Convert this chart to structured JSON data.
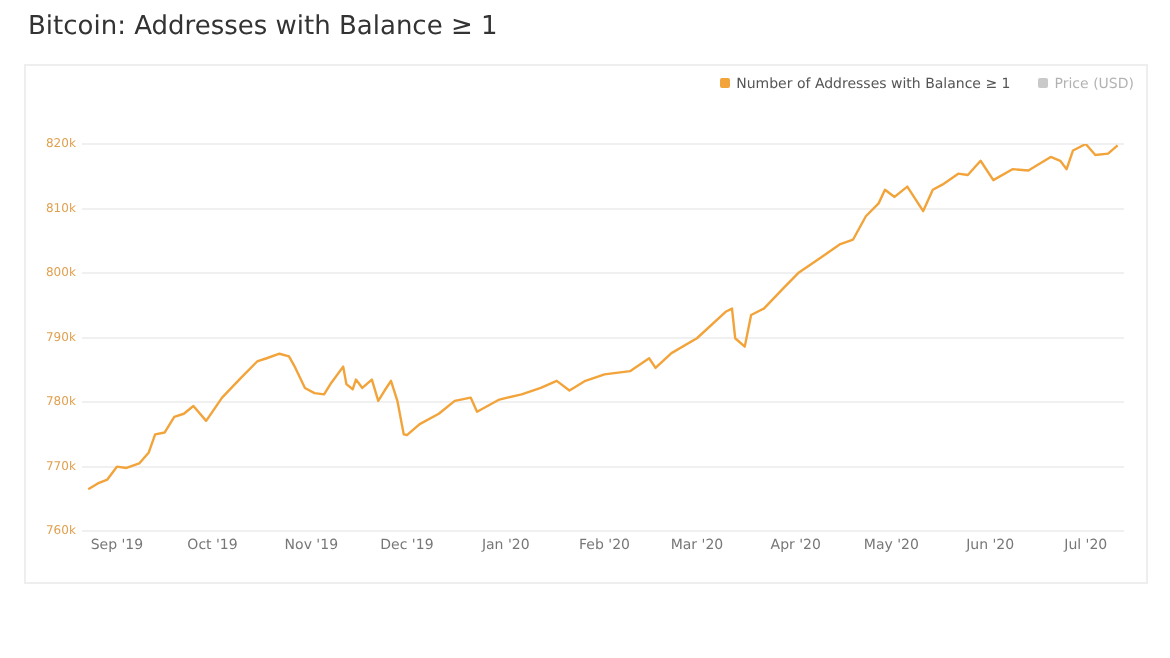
{
  "chart_data": {
    "type": "line",
    "title": "Bitcoin: Addresses with Balance ≥ 1",
    "x": [
      "2019-08-23",
      "2019-08-26",
      "2019-08-29",
      "2019-09-01",
      "2019-09-04",
      "2019-09-08",
      "2019-09-11",
      "2019-09-13",
      "2019-09-16",
      "2019-09-19",
      "2019-09-22",
      "2019-09-25",
      "2019-09-29",
      "2019-10-04",
      "2019-10-10",
      "2019-10-15",
      "2019-10-18",
      "2019-10-22",
      "2019-10-25",
      "2019-10-27",
      "2019-10-30",
      "2019-11-02",
      "2019-11-05",
      "2019-11-07",
      "2019-11-11",
      "2019-11-12",
      "2019-11-14",
      "2019-11-15",
      "2019-11-17",
      "2019-11-20",
      "2019-11-22",
      "2019-11-24",
      "2019-11-26",
      "2019-11-28",
      "2019-11-30",
      "2019-12-01",
      "2019-12-05",
      "2019-12-11",
      "2019-12-16",
      "2019-12-21",
      "2019-12-23",
      "2019-12-30",
      "2020-01-06",
      "2020-01-12",
      "2020-01-17",
      "2020-01-21",
      "2020-01-26",
      "2020-02-01",
      "2020-02-09",
      "2020-02-15",
      "2020-02-17",
      "2020-02-22",
      "2020-03-01",
      "2020-03-10",
      "2020-03-12",
      "2020-03-13",
      "2020-03-16",
      "2020-03-18",
      "2020-03-22",
      "2020-03-28",
      "2020-04-02",
      "2020-04-08",
      "2020-04-15",
      "2020-04-19",
      "2020-04-23",
      "2020-04-27",
      "2020-04-29",
      "2020-05-02",
      "2020-05-06",
      "2020-05-11",
      "2020-05-14",
      "2020-05-17",
      "2020-05-22",
      "2020-05-25",
      "2020-05-29",
      "2020-06-02",
      "2020-06-08",
      "2020-06-13",
      "2020-06-20",
      "2020-06-23",
      "2020-06-25",
      "2020-06-27",
      "2020-06-29",
      "2020-07-01",
      "2020-07-04",
      "2020-07-08",
      "2020-07-11"
    ],
    "series": [
      {
        "name": "Number of Addresses with Balance ≥ 1",
        "color": "#f2a33a",
        "values": [
          766500,
          767400,
          768000,
          770000,
          769800,
          770500,
          772200,
          775000,
          775300,
          777700,
          778200,
          779400,
          777100,
          780700,
          783800,
          786300,
          786800,
          787500,
          787100,
          785300,
          782200,
          781400,
          781200,
          782800,
          785500,
          782800,
          782000,
          783500,
          782200,
          783500,
          780200,
          781800,
          783300,
          780200,
          775000,
          774900,
          776600,
          778200,
          780200,
          780700,
          778500,
          780400,
          781200,
          782200,
          783300,
          781800,
          783300,
          784300,
          784800,
          786800,
          785300,
          787600,
          789900,
          794000,
          794500,
          789900,
          788600,
          793500,
          794500,
          797600,
          800100,
          802100,
          804500,
          805200,
          808800,
          810800,
          812900,
          811800,
          813400,
          809600,
          812900,
          813700,
          815400,
          815200,
          817400,
          814400,
          816100,
          815900,
          818000,
          817400,
          816100,
          819000,
          819500,
          820000,
          818300,
          818500,
          819800
        ]
      },
      {
        "name": "Price (USD)",
        "color": "#8a8a8a",
        "values": [
          null,
          null,
          null,
          null,
          null,
          null,
          null,
          null,
          null,
          null,
          null,
          null,
          null,
          null,
          null,
          null,
          null,
          null,
          null,
          null,
          null,
          null,
          null,
          null,
          null,
          null,
          null,
          null,
          null,
          null,
          null,
          null,
          null,
          null,
          null,
          null,
          null,
          null,
          null,
          null,
          null,
          null,
          null,
          null,
          null,
          null,
          null,
          null,
          null,
          null,
          null,
          null,
          null,
          null,
          null,
          null,
          null,
          null,
          null,
          null,
          null,
          null,
          null,
          null,
          null,
          null,
          null,
          null,
          null,
          null,
          null,
          null,
          null,
          null,
          null,
          null,
          null,
          null,
          null,
          null,
          null,
          null,
          null,
          null,
          null,
          null,
          null
        ]
      }
    ],
    "xlim": [
      "2019-08-21",
      "2020-07-13"
    ],
    "xticks": [
      {
        "value": "2019-09-01",
        "label": "Sep '19"
      },
      {
        "value": "2019-10-01",
        "label": "Oct '19"
      },
      {
        "value": "2019-11-01",
        "label": "Nov '19"
      },
      {
        "value": "2019-12-01",
        "label": "Dec '19"
      },
      {
        "value": "2020-01-01",
        "label": "Jan '20"
      },
      {
        "value": "2020-02-01",
        "label": "Feb '20"
      },
      {
        "value": "2020-03-01",
        "label": "Mar '20"
      },
      {
        "value": "2020-04-01",
        "label": "Apr '20"
      },
      {
        "value": "2020-05-01",
        "label": "May '20"
      },
      {
        "value": "2020-06-01",
        "label": "Jun '20"
      },
      {
        "value": "2020-07-01",
        "label": "Jul '20"
      }
    ],
    "ylim": [
      760000,
      820000
    ],
    "yticks": [
      {
        "value": 760000,
        "label": "760k"
      },
      {
        "value": 770000,
        "label": "770k"
      },
      {
        "value": 780000,
        "label": "780k"
      },
      {
        "value": 790000,
        "label": "790k"
      },
      {
        "value": 800000,
        "label": "800k"
      },
      {
        "value": 810000,
        "label": "810k"
      },
      {
        "value": 820000,
        "label": "820k"
      }
    ],
    "grid": "y",
    "legend": "top right",
    "marker": "none",
    "line_style": "solid"
  }
}
